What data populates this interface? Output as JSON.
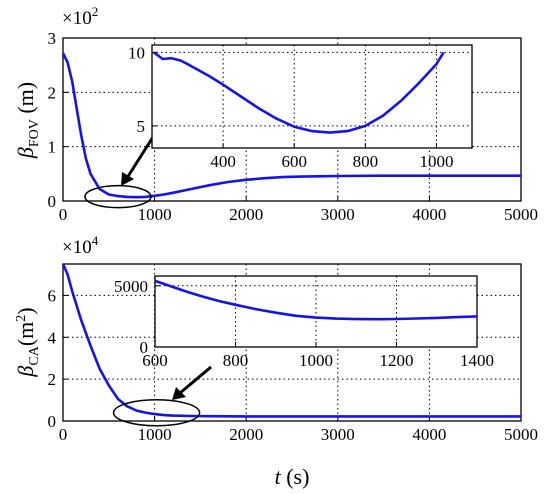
{
  "chart_data": [
    {
      "type": "line",
      "xlim": [
        0,
        5000
      ],
      "ylim": [
        0,
        3
      ],
      "xticks": [
        "0",
        "1000",
        "2000",
        "3000",
        "4000",
        "5000"
      ],
      "yticks": [
        "0",
        "1",
        "2",
        "3"
      ],
      "y_multiplier": {
        "base": "×10",
        "exp": "2"
      },
      "ylabel": {
        "sym": "β",
        "sub": "FOV",
        "unit": " (m)"
      },
      "grid": true,
      "series": [
        {
          "color": "#1414e6",
          "x": [
            0,
            50,
            100,
            150,
            200,
            250,
            300,
            400,
            500,
            600,
            700,
            800,
            900,
            1000,
            1100,
            1200,
            1400,
            1600,
            1800,
            2000,
            2200,
            2400,
            2600,
            2800,
            3000,
            3500,
            4000,
            4500,
            5000
          ],
          "y": [
            2.72,
            2.55,
            2.2,
            1.7,
            1.2,
            0.78,
            0.5,
            0.22,
            0.12,
            0.09,
            0.075,
            0.07,
            0.075,
            0.095,
            0.12,
            0.15,
            0.22,
            0.29,
            0.35,
            0.39,
            0.42,
            0.44,
            0.45,
            0.455,
            0.46,
            0.465,
            0.465,
            0.465,
            0.465
          ]
        }
      ],
      "annotation": {
        "type": "zoom-ellipse",
        "center_x": 600,
        "center_y": 0.08
      },
      "inset": {
        "xlim": [
          200,
          1100
        ],
        "ylim": [
          3.5,
          10.5
        ],
        "xticks": [
          "400",
          "600",
          "800",
          "1000"
        ],
        "yticks": [
          "5",
          "10"
        ],
        "x": [
          205,
          230,
          255,
          280,
          300,
          330,
          360,
          400,
          450,
          500,
          550,
          600,
          650,
          700,
          750,
          800,
          850,
          900,
          950,
          1000,
          1020
        ],
        "y": [
          10,
          9.55,
          9.6,
          9.45,
          9.2,
          8.8,
          8.4,
          7.8,
          7.0,
          6.2,
          5.5,
          4.95,
          4.65,
          4.55,
          4.65,
          5.0,
          5.7,
          6.7,
          7.9,
          9.2,
          10
        ]
      }
    },
    {
      "type": "line",
      "xlim": [
        0,
        5000
      ],
      "ylim": [
        0,
        7.5
      ],
      "xticks": [
        "0",
        "1000",
        "2000",
        "3000",
        "4000",
        "5000"
      ],
      "yticks": [
        "0",
        "2",
        "4",
        "6"
      ],
      "y_multiplier": {
        "base": "×10",
        "exp": "4"
      },
      "xlabel": {
        "sym": "t",
        "unit": " (s)"
      },
      "ylabel": {
        "sym": "β",
        "sub": "CA",
        "unit": "(m",
        "sup": "2",
        "close": ")"
      },
      "grid": true,
      "series": [
        {
          "color": "#1414e6",
          "x": [
            0,
            50,
            100,
            200,
            300,
            400,
            500,
            600,
            700,
            800,
            900,
            1000,
            1100,
            1200,
            1400,
            1600,
            2000,
            3000,
            4000,
            5000
          ],
          "y": [
            7.5,
            7.0,
            6.2,
            4.8,
            3.6,
            2.5,
            1.7,
            1.05,
            0.7,
            0.5,
            0.4,
            0.33,
            0.28,
            0.26,
            0.24,
            0.23,
            0.22,
            0.22,
            0.22,
            0.22
          ]
        }
      ],
      "annotation": {
        "type": "zoom-ellipse",
        "center_x": 1000,
        "center_y": 0.25
      },
      "inset": {
        "xlim": [
          600,
          1400
        ],
        "ylim": [
          0,
          5800
        ],
        "xticks": [
          "600",
          "800",
          "1000",
          "1200",
          "1400"
        ],
        "yticks": [
          "0",
          "5000"
        ],
        "x": [
          600,
          640,
          680,
          720,
          760,
          800,
          850,
          900,
          950,
          1000,
          1050,
          1100,
          1150,
          1200,
          1250,
          1300,
          1350,
          1400
        ],
        "y": [
          5400,
          4950,
          4500,
          4100,
          3750,
          3450,
          3100,
          2800,
          2550,
          2400,
          2320,
          2280,
          2270,
          2290,
          2330,
          2380,
          2440,
          2500
        ]
      }
    }
  ]
}
